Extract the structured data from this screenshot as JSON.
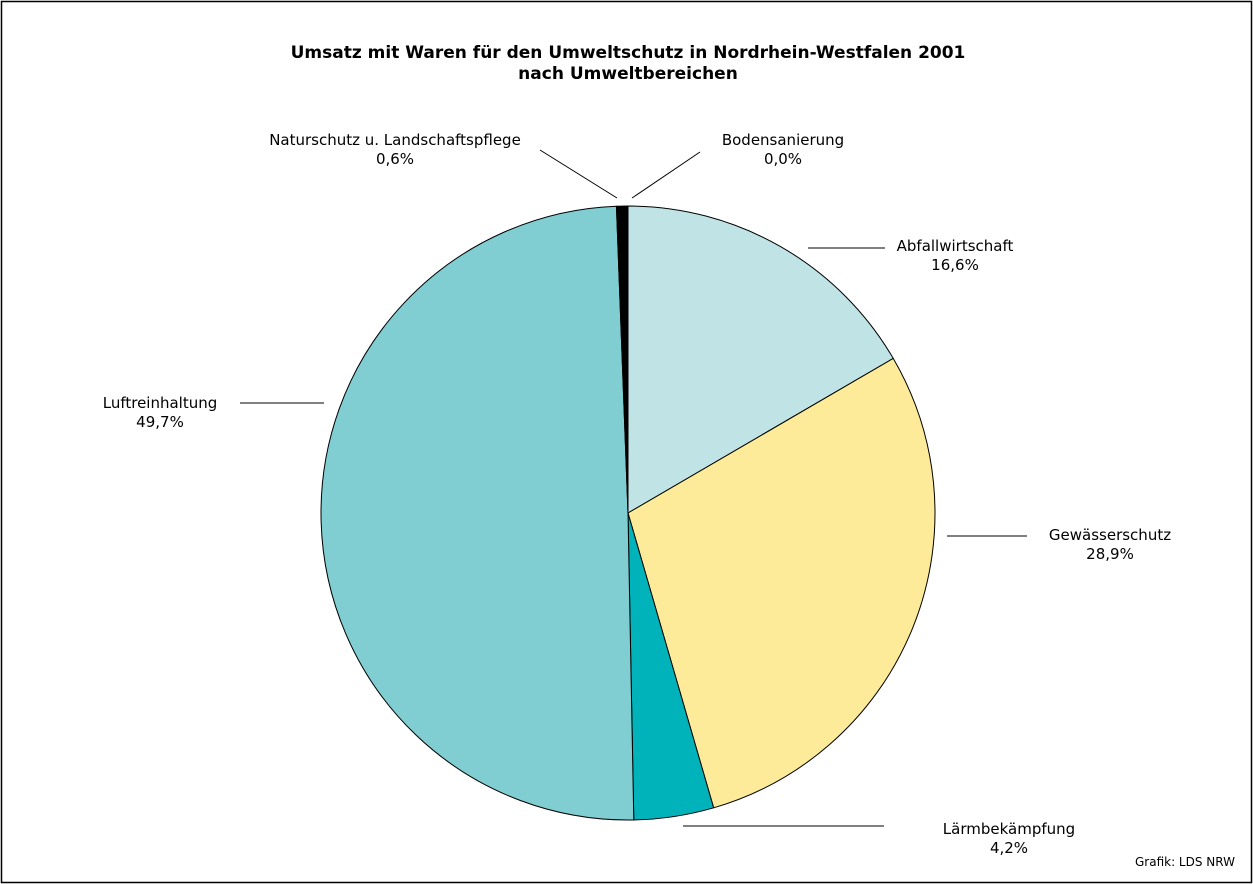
{
  "chart_data": {
    "type": "pie",
    "title": "Umsatz mit Waren für den Umweltschutz in Nordrhein-Westfalen 2001",
    "subtitle": "nach Umweltbereichen",
    "categories": [
      "Bodensanierung",
      "Abfallwirtschaft",
      "Gewässerschutz",
      "Lärmbekämpfung",
      "Luftreinhaltung",
      "Naturschutz u. Landschaftspflege"
    ],
    "values": [
      0.0,
      16.6,
      28.9,
      4.2,
      49.7,
      0.6
    ],
    "value_labels": [
      "0,0%",
      "16,6%",
      "28,9%",
      "4,2%",
      "49,7%",
      "0,6%"
    ],
    "colors": [
      "#7a7a7a",
      "#c0e4e6",
      "#fdeb9a",
      "#00b3ba",
      "#80ced2",
      "#000000"
    ],
    "source": "Grafik: LDS NRW"
  }
}
